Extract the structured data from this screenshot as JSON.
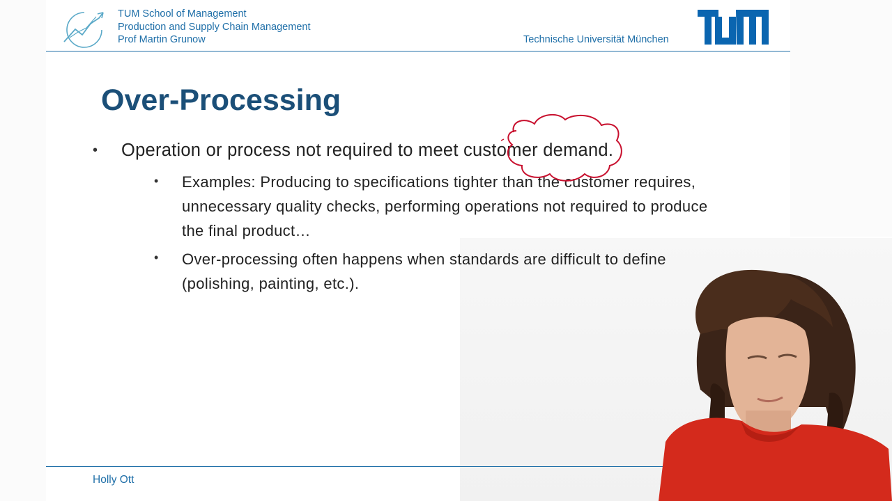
{
  "header": {
    "school": "TUM School of Management",
    "chair": "Production and Supply Chain Management",
    "professor": "Prof Martin Grunow",
    "university": "Technische Universität München",
    "logo_icon": "tum-logo-icon",
    "emblem_icon": "chart-arrow-emblem-icon"
  },
  "slide": {
    "title": "Over-Processing",
    "bullet": "Operation or process not required to meet customer demand.",
    "sub_bullets": [
      "Examples: Producing to specifications tighter than the customer requires, unnecessary quality checks, performing operations not required to produce the final product…",
      "Over-processing often happens when standards are difficult to define (polishing, painting, etc.)."
    ],
    "bullet_symbol": "•"
  },
  "footer": {
    "presenter_name": "Holly Ott"
  },
  "annotation": {
    "shape": "cloud-circle",
    "color": "#c8102e",
    "target_phrase": "customer demand"
  },
  "colors": {
    "brand_blue": "#1f6fa8",
    "title_blue": "#1b4f78",
    "text": "#222222",
    "pen_red": "#c8102e"
  }
}
